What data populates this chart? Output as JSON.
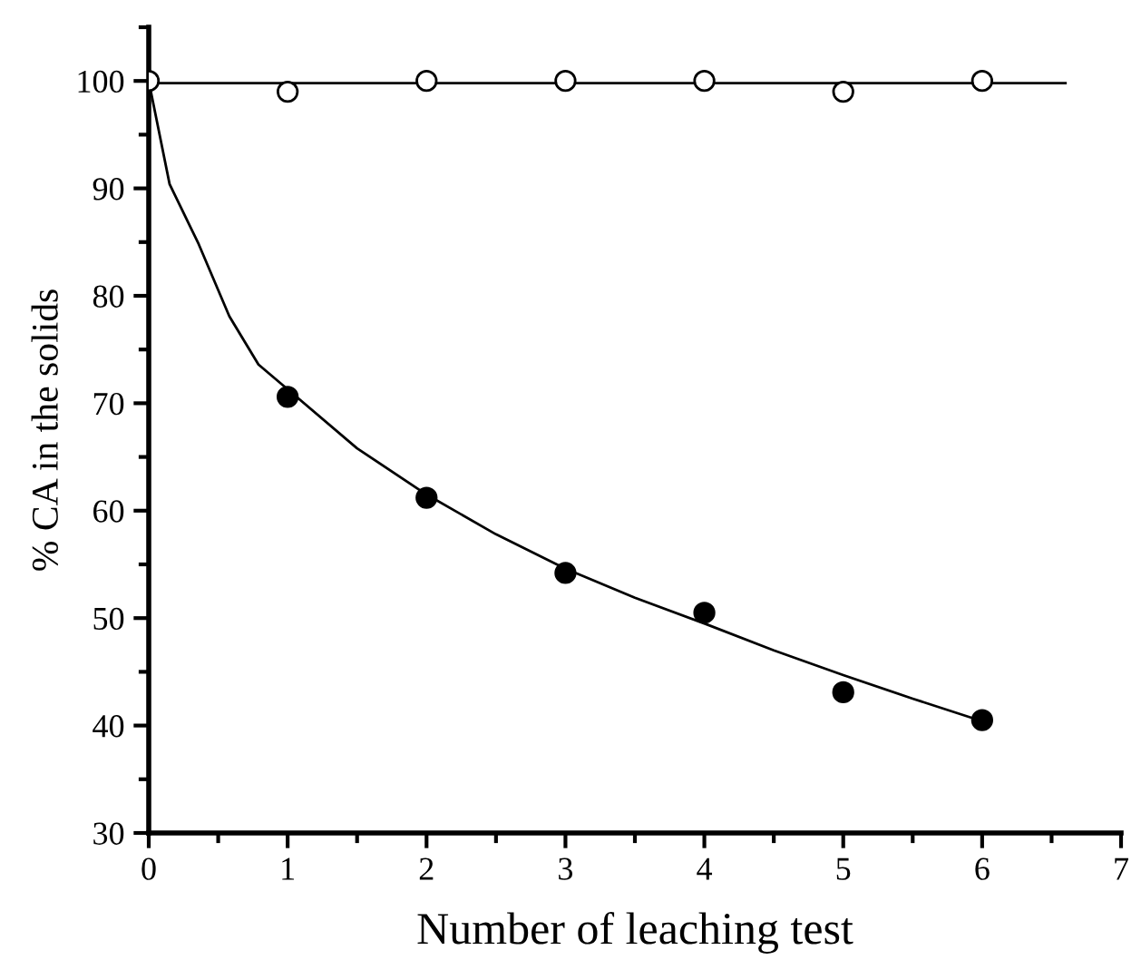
{
  "chart_data": {
    "type": "scatter",
    "xlabel": "Number of leaching test",
    "ylabel": "% CA in the solids",
    "xlim": [
      0,
      7
    ],
    "ylim": [
      30,
      105
    ],
    "xticks": [
      0,
      1,
      2,
      3,
      4,
      5,
      6,
      7
    ],
    "yticks": [
      30,
      40,
      50,
      60,
      70,
      80,
      90,
      100
    ],
    "grid": false,
    "legend": false,
    "series": [
      {
        "type": "line",
        "color": "#000000",
        "marker": "none",
        "line_style": "solid",
        "x": [
          0,
          6.6
        ],
        "values": [
          99.8,
          99.8
        ]
      },
      {
        "type": "line",
        "color": "#000000",
        "marker": "none",
        "line_style": "solid",
        "x": [
          0,
          0.15,
          0.36,
          0.58,
          0.79,
          1,
          1.5,
          2,
          2.5,
          3,
          3.5,
          4,
          4.5,
          5,
          5.5,
          6
        ],
        "values": [
          100,
          90.4,
          84.8,
          78.1,
          73.6,
          71.3,
          65.8,
          61.5,
          57.8,
          54.6,
          51.9,
          49.5,
          47,
          44.7,
          42.5,
          40.4
        ]
      },
      {
        "color": "#ffffff",
        "marker": "circle",
        "x": [
          0,
          1,
          2,
          3,
          4,
          5,
          6
        ],
        "values": [
          100,
          99,
          100,
          100,
          100,
          99,
          100
        ]
      },
      {
        "color": "#000000",
        "marker": "circle",
        "x": [
          1,
          2,
          3,
          4,
          5,
          6
        ],
        "values": [
          70.6,
          61.2,
          54.2,
          50.5,
          43.1,
          40.5
        ]
      }
    ]
  }
}
